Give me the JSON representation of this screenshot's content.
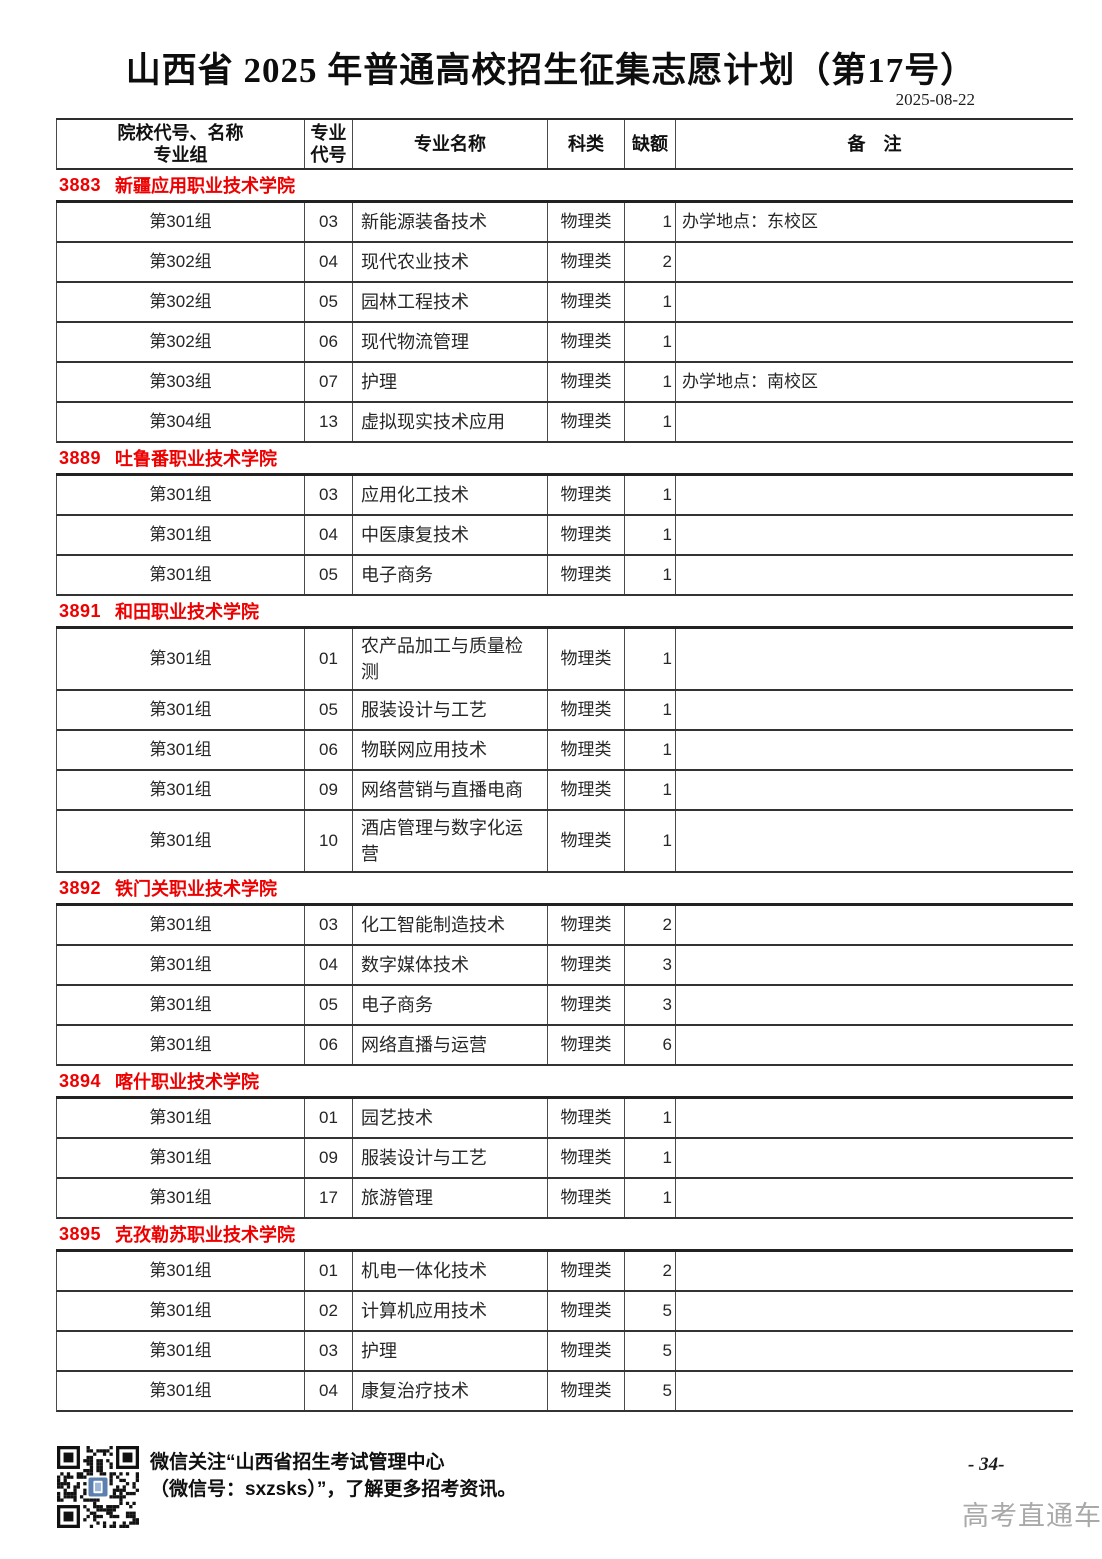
{
  "page": {
    "title": "山西省 2025 年普通高校招生征集志愿计划（第17号）",
    "date": "2025-08-22"
  },
  "table": {
    "headers": [
      {
        "lines": [
          "院校代号、名称",
          "专业组"
        ]
      },
      {
        "lines": [
          "专业",
          "代号"
        ]
      },
      {
        "lines": [
          "专业名称"
        ]
      },
      {
        "lines": [
          "科类"
        ]
      },
      {
        "lines": [
          "缺额"
        ]
      },
      {
        "lines": [
          "备　注"
        ]
      }
    ],
    "sections": [
      {
        "code": "3883",
        "name": "新疆应用职业技术学院",
        "rows": [
          {
            "group": "第301组",
            "major_code": "03",
            "major": "新能源装备技术",
            "category": "物理类",
            "vacancy": "1",
            "note": "办学地点：东校区"
          },
          {
            "group": "第302组",
            "major_code": "04",
            "major": "现代农业技术",
            "category": "物理类",
            "vacancy": "2",
            "note": ""
          },
          {
            "group": "第302组",
            "major_code": "05",
            "major": "园林工程技术",
            "category": "物理类",
            "vacancy": "1",
            "note": ""
          },
          {
            "group": "第302组",
            "major_code": "06",
            "major": "现代物流管理",
            "category": "物理类",
            "vacancy": "1",
            "note": ""
          },
          {
            "group": "第303组",
            "major_code": "07",
            "major": "护理",
            "category": "物理类",
            "vacancy": "1",
            "note": "办学地点：南校区"
          },
          {
            "group": "第304组",
            "major_code": "13",
            "major": "虚拟现实技术应用",
            "category": "物理类",
            "vacancy": "1",
            "note": ""
          }
        ]
      },
      {
        "code": "3889",
        "name": "吐鲁番职业技术学院",
        "rows": [
          {
            "group": "第301组",
            "major_code": "03",
            "major": "应用化工技术",
            "category": "物理类",
            "vacancy": "1",
            "note": ""
          },
          {
            "group": "第301组",
            "major_code": "04",
            "major": "中医康复技术",
            "category": "物理类",
            "vacancy": "1",
            "note": ""
          },
          {
            "group": "第301组",
            "major_code": "05",
            "major": "电子商务",
            "category": "物理类",
            "vacancy": "1",
            "note": ""
          }
        ]
      },
      {
        "code": "3891",
        "name": "和田职业技术学院",
        "rows": [
          {
            "group": "第301组",
            "major_code": "01",
            "major": "农产品加工与质量检测",
            "category": "物理类",
            "vacancy": "1",
            "note": ""
          },
          {
            "group": "第301组",
            "major_code": "05",
            "major": "服装设计与工艺",
            "category": "物理类",
            "vacancy": "1",
            "note": ""
          },
          {
            "group": "第301组",
            "major_code": "06",
            "major": "物联网应用技术",
            "category": "物理类",
            "vacancy": "1",
            "note": ""
          },
          {
            "group": "第301组",
            "major_code": "09",
            "major": "网络营销与直播电商",
            "category": "物理类",
            "vacancy": "1",
            "note": ""
          },
          {
            "group": "第301组",
            "major_code": "10",
            "major": "酒店管理与数字化运营",
            "category": "物理类",
            "vacancy": "1",
            "note": ""
          }
        ]
      },
      {
        "code": "3892",
        "name": "铁门关职业技术学院",
        "rows": [
          {
            "group": "第301组",
            "major_code": "03",
            "major": "化工智能制造技术",
            "category": "物理类",
            "vacancy": "2",
            "note": ""
          },
          {
            "group": "第301组",
            "major_code": "04",
            "major": "数字媒体技术",
            "category": "物理类",
            "vacancy": "3",
            "note": ""
          },
          {
            "group": "第301组",
            "major_code": "05",
            "major": "电子商务",
            "category": "物理类",
            "vacancy": "3",
            "note": ""
          },
          {
            "group": "第301组",
            "major_code": "06",
            "major": "网络直播与运营",
            "category": "物理类",
            "vacancy": "6",
            "note": ""
          }
        ]
      },
      {
        "code": "3894",
        "name": "喀什职业技术学院",
        "rows": [
          {
            "group": "第301组",
            "major_code": "01",
            "major": "园艺技术",
            "category": "物理类",
            "vacancy": "1",
            "note": ""
          },
          {
            "group": "第301组",
            "major_code": "09",
            "major": "服装设计与工艺",
            "category": "物理类",
            "vacancy": "1",
            "note": ""
          },
          {
            "group": "第301组",
            "major_code": "17",
            "major": "旅游管理",
            "category": "物理类",
            "vacancy": "1",
            "note": ""
          }
        ]
      },
      {
        "code": "3895",
        "name": "克孜勒苏职业技术学院",
        "rows": [
          {
            "group": "第301组",
            "major_code": "01",
            "major": "机电一体化技术",
            "category": "物理类",
            "vacancy": "2",
            "note": ""
          },
          {
            "group": "第301组",
            "major_code": "02",
            "major": "计算机应用技术",
            "category": "物理类",
            "vacancy": "5",
            "note": ""
          },
          {
            "group": "第301组",
            "major_code": "03",
            "major": "护理",
            "category": "物理类",
            "vacancy": "5",
            "note": ""
          },
          {
            "group": "第301组",
            "major_code": "04",
            "major": "康复治疗技术",
            "category": "物理类",
            "vacancy": "5",
            "note": ""
          }
        ]
      }
    ]
  },
  "footer": {
    "qr_icon": "qr-code",
    "wechat_line1": "微信关注“山西省招生考试管理中心",
    "wechat_line2": "（微信号：sxzsks）”，了解更多招考资讯。",
    "page_number": "- 34-",
    "watermark": "高考直通车"
  },
  "colors": {
    "section_red": "#ee0000",
    "border_dark": "#2e2e2e",
    "watermark_gray": "#a9a9a9",
    "qr_logo_blue": "#5b7fae"
  }
}
